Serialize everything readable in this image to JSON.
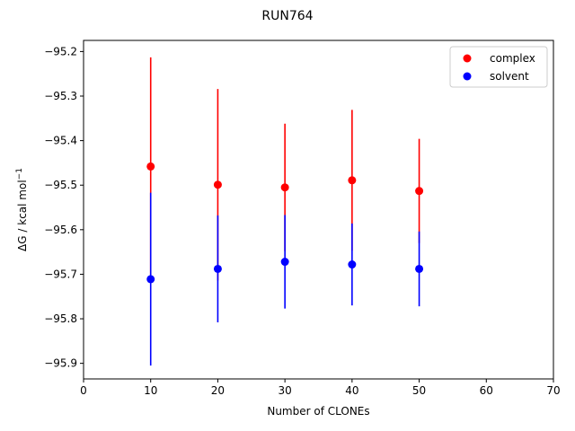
{
  "chart_data": {
    "type": "scatter",
    "title": "RUN764",
    "xlabel": "Number of CLONEs",
    "ylabel": "ΔG / kcal mol",
    "ylabel_sup": "−1",
    "xlim": [
      0,
      70
    ],
    "ylim": [
      -95.935,
      -95.175
    ],
    "x_ticks": [
      0,
      10,
      20,
      30,
      40,
      50,
      60,
      70
    ],
    "x_tick_labels": [
      "0",
      "10",
      "20",
      "30",
      "40",
      "50",
      "60",
      "70"
    ],
    "y_ticks": [
      -95.2,
      -95.3,
      -95.4,
      -95.5,
      -95.6,
      -95.7,
      -95.8,
      -95.9
    ],
    "y_tick_labels": [
      "−95.2",
      "−95.3",
      "−95.4",
      "−95.5",
      "−95.6",
      "−95.7",
      "−95.8",
      "−95.9"
    ],
    "grid": false,
    "legend_position": "top-right",
    "series": [
      {
        "name": "complex",
        "color": "#ff0000",
        "x": [
          10,
          20,
          30,
          40,
          50
        ],
        "y": [
          -95.458,
          -95.499,
          -95.505,
          -95.489,
          -95.513
        ],
        "error": [
          0.245,
          0.215,
          0.143,
          0.158,
          0.117
        ]
      },
      {
        "name": "solvent",
        "color": "#0000ff",
        "x": [
          10,
          20,
          30,
          40,
          50
        ],
        "y": [
          -95.711,
          -95.688,
          -95.672,
          -95.678,
          -95.688
        ],
        "error": [
          0.194,
          0.12,
          0.105,
          0.092,
          0.084
        ]
      }
    ]
  }
}
